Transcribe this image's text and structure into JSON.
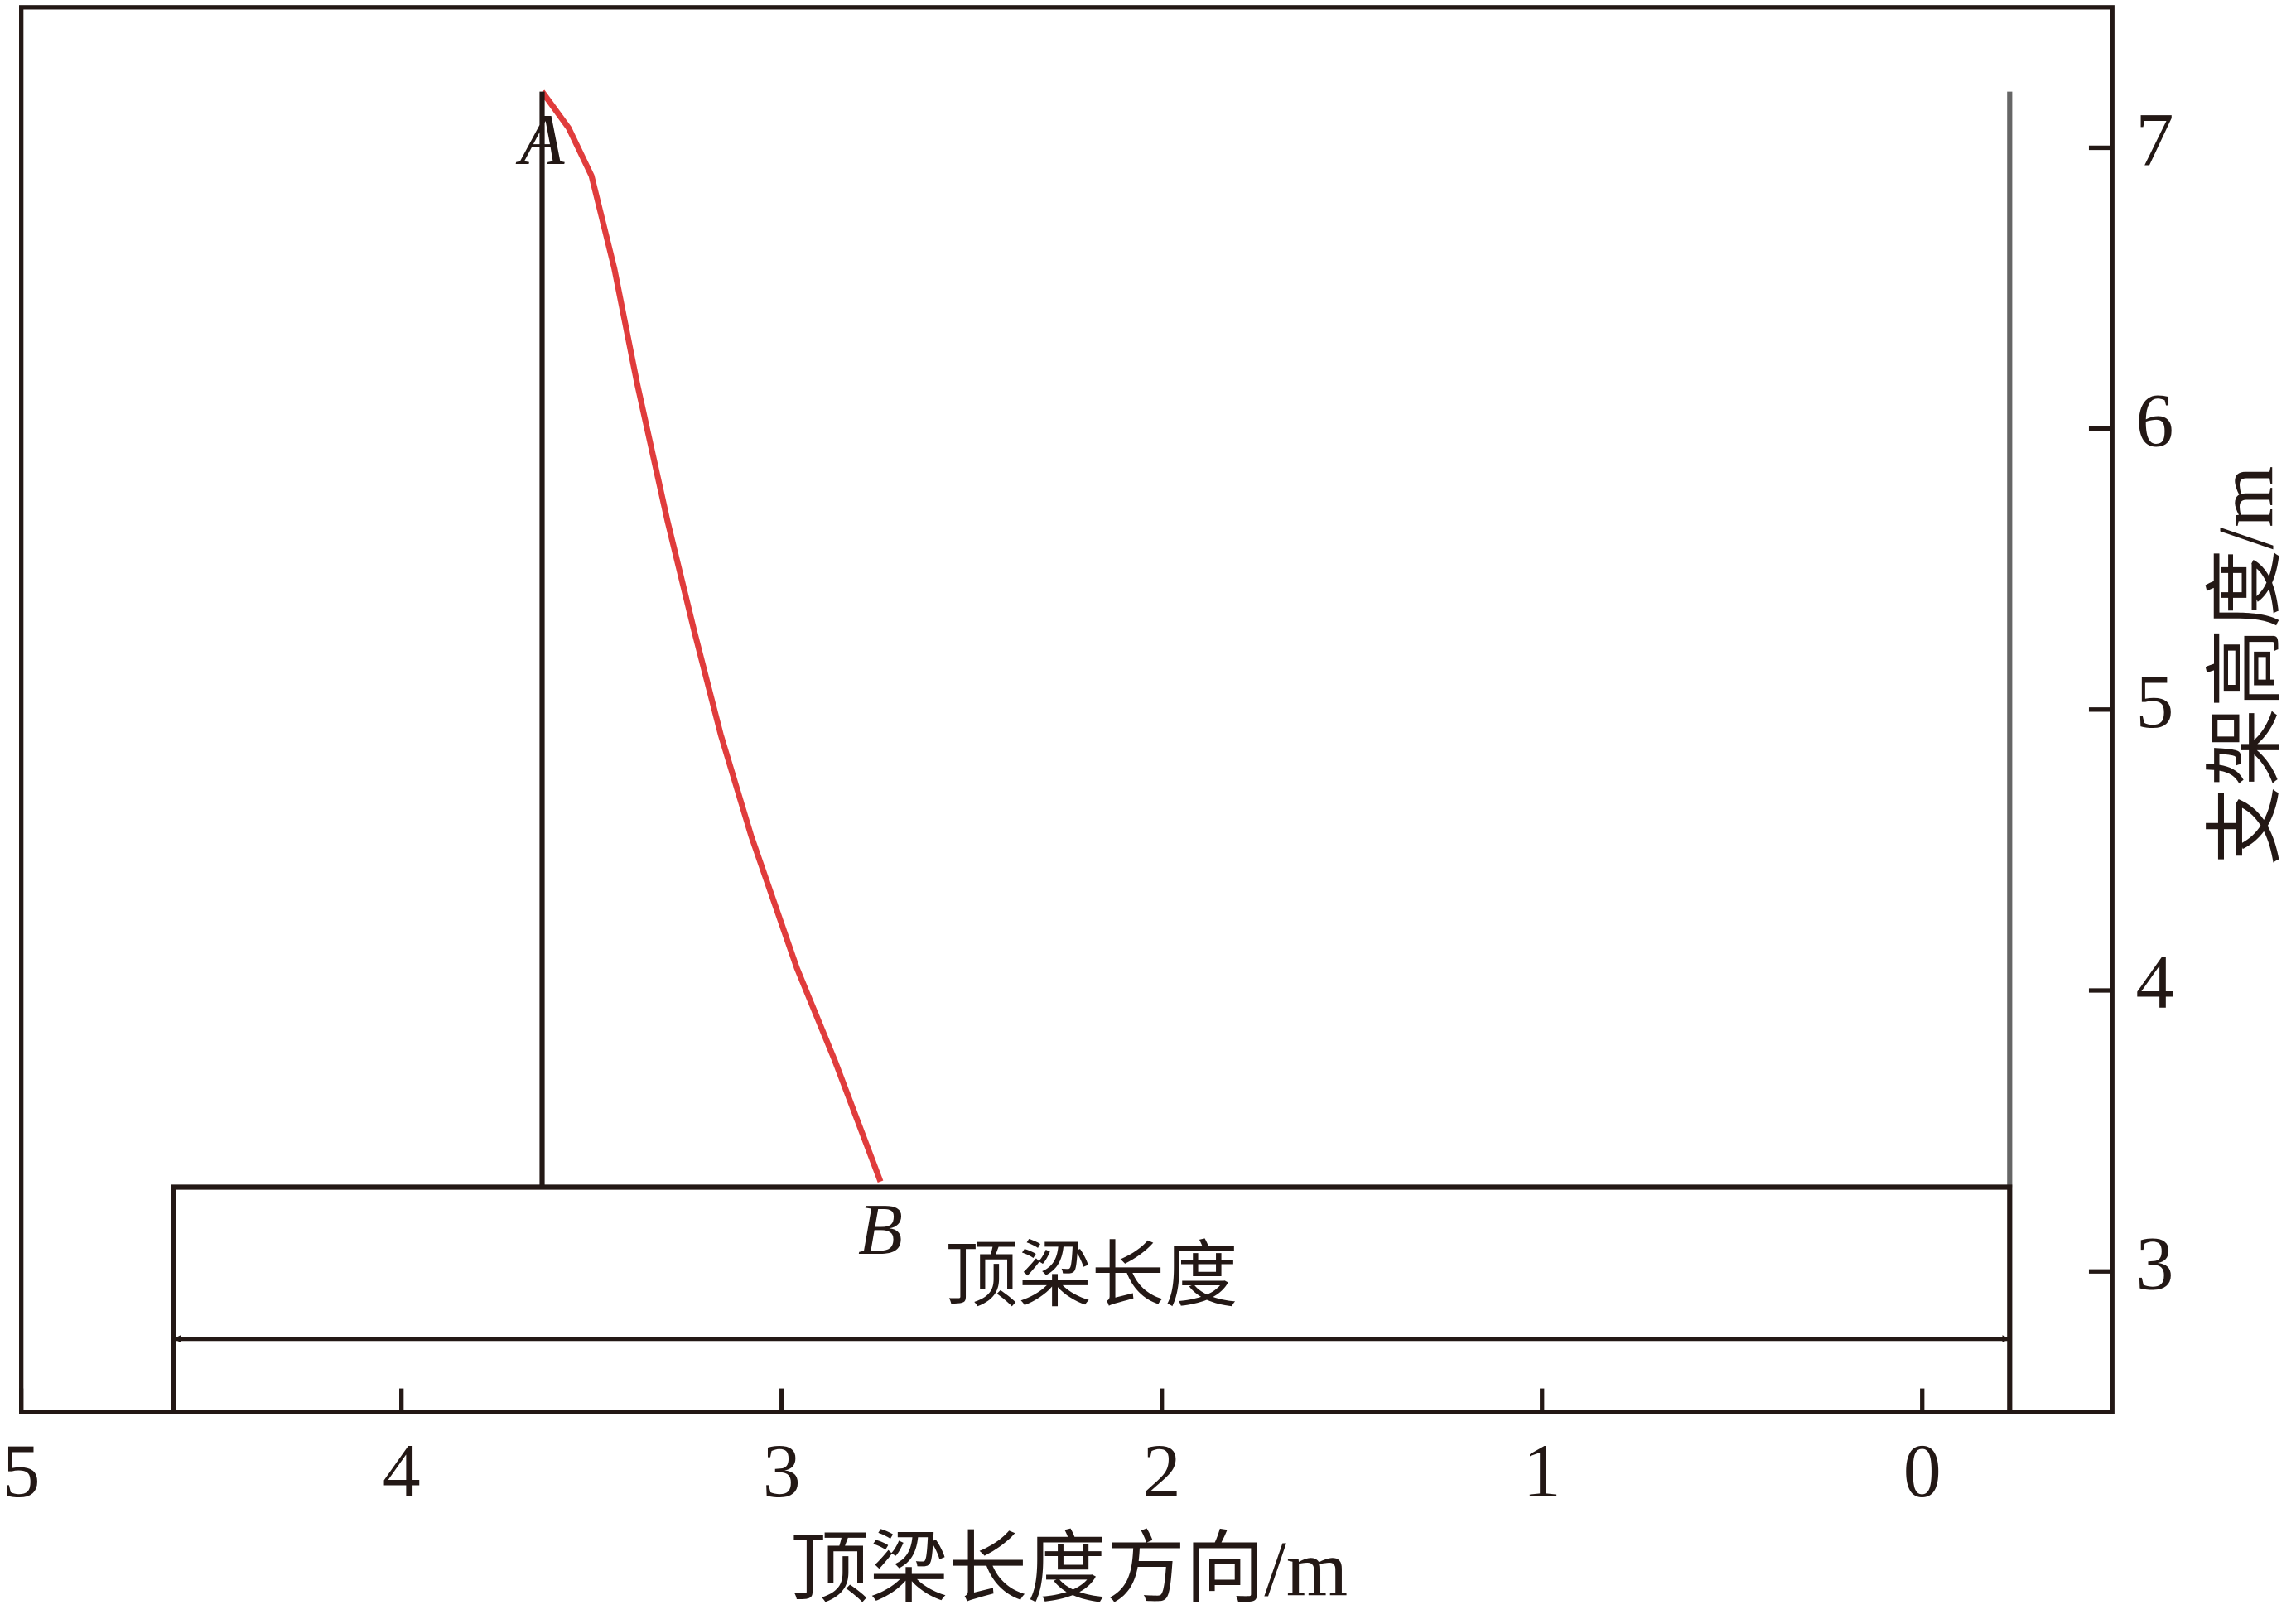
{
  "chart_data": {
    "type": "line",
    "xlabel": "顶梁长度方向/m",
    "ylabel": "支架高度/m",
    "xlim": [
      5,
      -0.5
    ],
    "ylim": [
      2.5,
      7.5
    ],
    "xticks": [
      5,
      4,
      3,
      2,
      1,
      0
    ],
    "yticks": [
      3,
      4,
      5,
      6,
      7
    ],
    "series": [
      {
        "color": "#e03c3c",
        "x": [
          3.63,
          3.56,
          3.5,
          3.44,
          3.38,
          3.3,
          3.23,
          3.16,
          3.08,
          2.96,
          2.86,
          2.74
        ],
        "values": [
          7.2,
          7.07,
          6.9,
          6.57,
          6.16,
          5.67,
          5.28,
          4.91,
          4.55,
          4.08,
          3.75,
          3.32
        ],
        "label": "B"
      },
      {
        "color": "#231815",
        "x": [
          3.63,
          3.63
        ],
        "values": [
          3.3,
          7.2
        ],
        "label": "A"
      },
      {
        "color": "#666666",
        "x": [
          -0.23,
          -0.23
        ],
        "values": [
          3.3,
          7.2
        ]
      },
      {
        "color": "#231815",
        "x": [
          4.6,
          4.6,
          -0.23,
          -0.23
        ],
        "values": [
          2.5,
          3.3,
          3.3,
          2.5
        ]
      }
    ],
    "arrow": {
      "text": "顶梁长度",
      "x": [
        4.6,
        -0.23
      ],
      "values": [
        2.76,
        2.76
      ]
    }
  }
}
